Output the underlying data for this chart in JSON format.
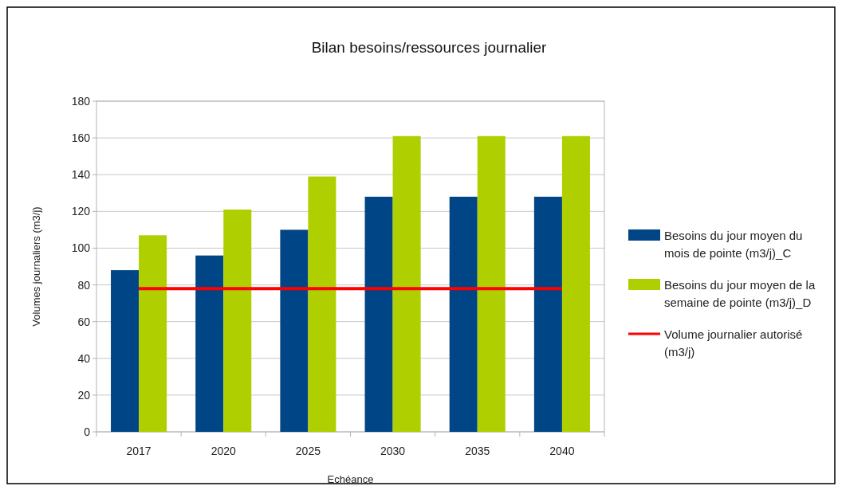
{
  "chart_data": {
    "type": "bar",
    "title": "Bilan besoins/ressources journalier",
    "xlabel": "Echéance",
    "ylabel": "Volumes journaliers (m3/j)",
    "categories": [
      "2017",
      "2020",
      "2025",
      "2030",
      "2035",
      "2040"
    ],
    "series": [
      {
        "name": "Besoins du jour moyen du mois de pointe (m3/j)_C",
        "color": "#004586",
        "values": [
          88,
          96,
          110,
          128,
          128,
          128
        ]
      },
      {
        "name": "Besoins du jour moyen de la semaine de pointe (m3/j)_D",
        "color": "#b0cf00",
        "values": [
          107,
          121,
          139,
          161,
          161,
          161
        ]
      },
      {
        "name": "Volume journalier autorisé (m3/j)",
        "type": "line",
        "color": "#ff0000",
        "values": [
          78,
          78,
          78,
          78,
          78,
          78
        ]
      }
    ],
    "ylim": [
      0,
      180
    ],
    "yticks": [
      0,
      20,
      40,
      60,
      80,
      100,
      120,
      140,
      160,
      180
    ],
    "grid": "y",
    "legend": "right",
    "marker": "none",
    "line_style": "solid"
  }
}
